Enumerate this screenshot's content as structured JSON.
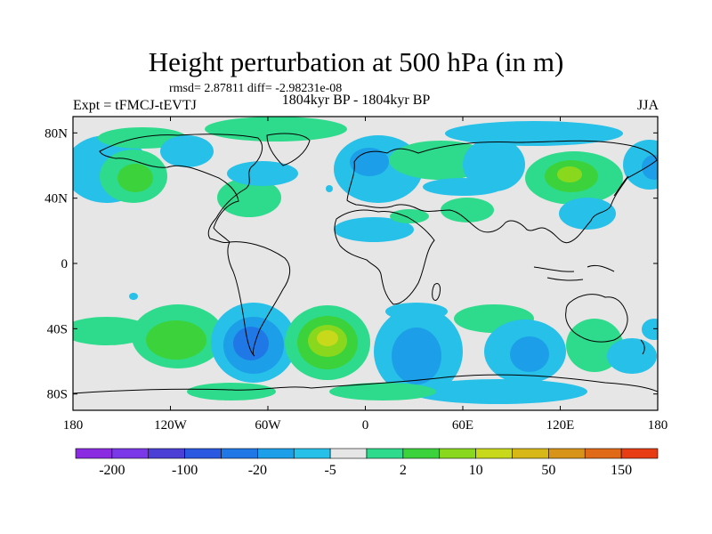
{
  "title": "Height perturbation at 500 hPa (in m)",
  "stats": "rmsd= 2.87811 diff= -2.98231e-08",
  "subtitle": "1804kyr BP - 1804kyr BP",
  "experiment": "Expt = tFMCJ-tEVTJ",
  "season": "JJA",
  "lat_ticks": [
    "80N",
    "40N",
    "0",
    "40S",
    "80S"
  ],
  "lat_values": [
    80,
    40,
    0,
    -40,
    -80
  ],
  "lon_ticks": [
    "180",
    "120W",
    "60W",
    "0",
    "60E",
    "120E",
    "180"
  ],
  "lon_values": [
    -180,
    -120,
    -60,
    0,
    60,
    120,
    180
  ],
  "colorbar": {
    "colors": [
      "#8a2be2",
      "#7a38e8",
      "#4b3fd6",
      "#2a58e0",
      "#1f78e6",
      "#1d9ee8",
      "#26c0e8",
      "#e6e6e6",
      "#2edb8c",
      "#3cd23c",
      "#8ad81e",
      "#c8d81a",
      "#d8b818",
      "#d89418",
      "#e06a18",
      "#e83c14"
    ],
    "labels": [
      "-200",
      "-100",
      "-20",
      "-5",
      "2",
      "10",
      "50",
      "150"
    ]
  },
  "colors": {
    "land_background": "#e6e6e6",
    "neg_weak": "#26c0e8",
    "neg_mid": "#1d9ee8",
    "neg_strong": "#1f78e6",
    "pos_weak": "#2edb8c",
    "pos_mid": "#3cd23c",
    "pos_strong": "#8ad81e",
    "pos_peak": "#c8d81a"
  }
}
